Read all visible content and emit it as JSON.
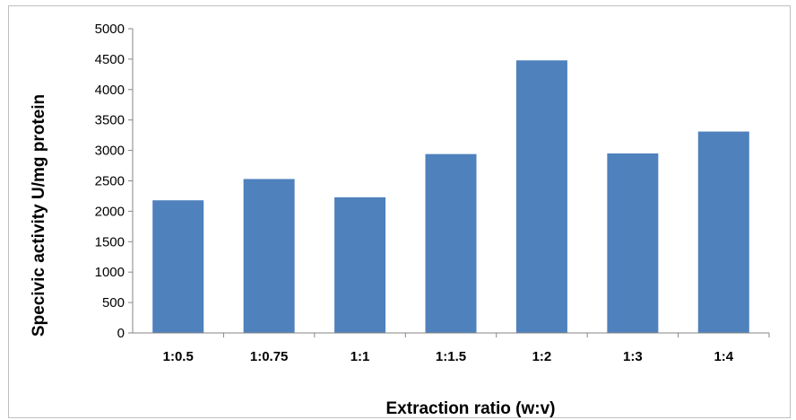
{
  "chart_data": {
    "type": "bar",
    "categories": [
      "1:0.5",
      "1:0.75",
      "1:1",
      "1:1.5",
      "1:2",
      "1:3",
      "1:4"
    ],
    "values": [
      2180,
      2530,
      2230,
      2940,
      4480,
      2950,
      3310
    ],
    "xlabel": "Extraction ratio (w:v)",
    "ylabel": "Specivic activity  U/mg protein",
    "ylim": [
      0,
      5000
    ],
    "yticks": [
      0,
      500,
      1000,
      1500,
      2000,
      2500,
      3000,
      3500,
      4000,
      4500,
      5000
    ],
    "grid": false,
    "legend": "none",
    "colors": {
      "bar": "#4f81bd",
      "axis": "#868686"
    }
  }
}
